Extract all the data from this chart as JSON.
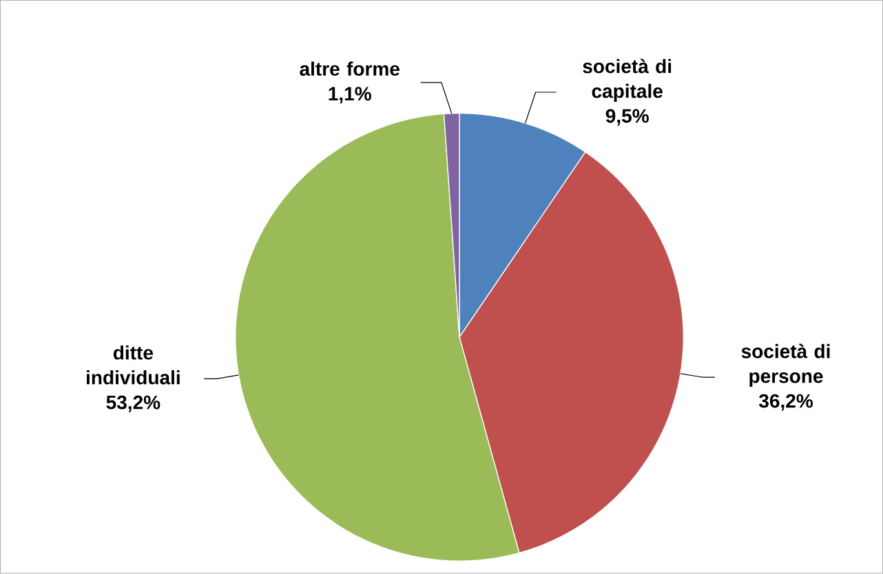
{
  "chart_data": {
    "type": "pie",
    "categories": [
      "società di capitale",
      "società di persone",
      "ditte individuali",
      "altre forme"
    ],
    "values": [
      9.5,
      36.2,
      53.2,
      1.1
    ],
    "colors": [
      "#4f81bd",
      "#c0504d",
      "#9bbb59",
      "#8064a2"
    ],
    "value_labels": [
      "9,5%",
      "36,2%",
      "53,2%",
      "1,1%"
    ]
  }
}
